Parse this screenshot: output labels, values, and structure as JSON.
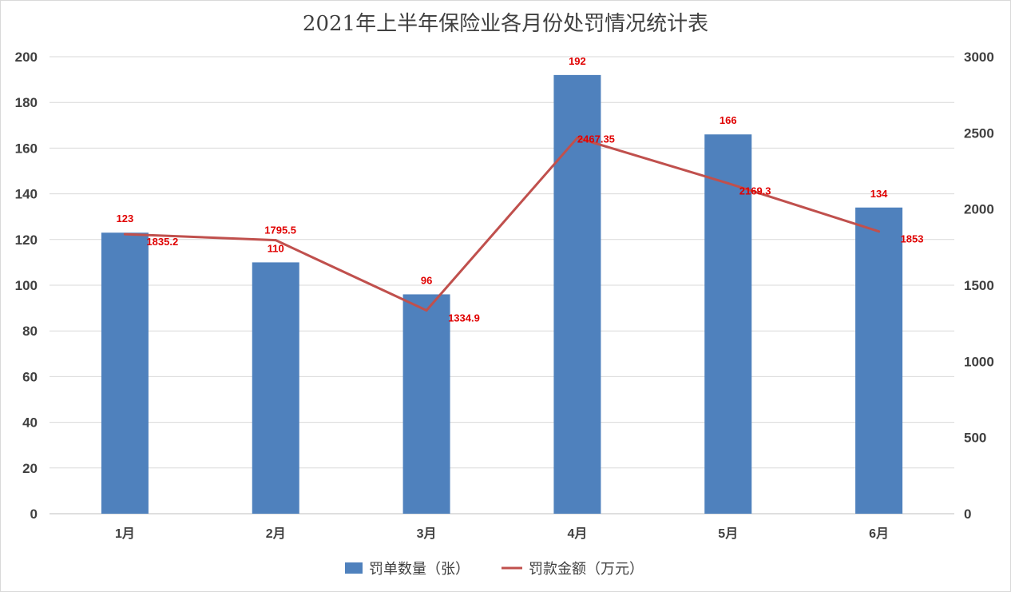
{
  "chart_data": {
    "type": "bar",
    "title": "2021年上半年保险业各月份处罚情况统计表",
    "categories": [
      "1月",
      "2月",
      "3月",
      "4月",
      "5月",
      "6月"
    ],
    "series": [
      {
        "name": "罚单数量（张）",
        "type": "bar",
        "axis": "left",
        "color": "#4f81bd",
        "values": [
          123,
          110,
          96,
          192,
          166,
          134
        ],
        "labels": [
          "123",
          "110",
          "96",
          "192",
          "166",
          "134"
        ]
      },
      {
        "name": "罚款金额（万元）",
        "type": "line",
        "axis": "right",
        "color": "#c0504d",
        "values": [
          1835.2,
          1795.5,
          1334.9,
          2467.35,
          2169.3,
          1853
        ],
        "labels": [
          "1835.2",
          "1795.5",
          "1334.9",
          "2467.35",
          "2169.3",
          "1853"
        ]
      }
    ],
    "y_left": {
      "min": 0,
      "max": 200,
      "ticks": [
        "0",
        "20",
        "40",
        "60",
        "80",
        "100",
        "120",
        "140",
        "160",
        "180",
        "200"
      ]
    },
    "y_right": {
      "min": 0,
      "max": 3000,
      "ticks": [
        "0",
        "500",
        "1000",
        "1500",
        "2000",
        "2500",
        "3000"
      ]
    },
    "grid": true,
    "legend_position": "bottom",
    "data_label_color": "#e00000"
  }
}
